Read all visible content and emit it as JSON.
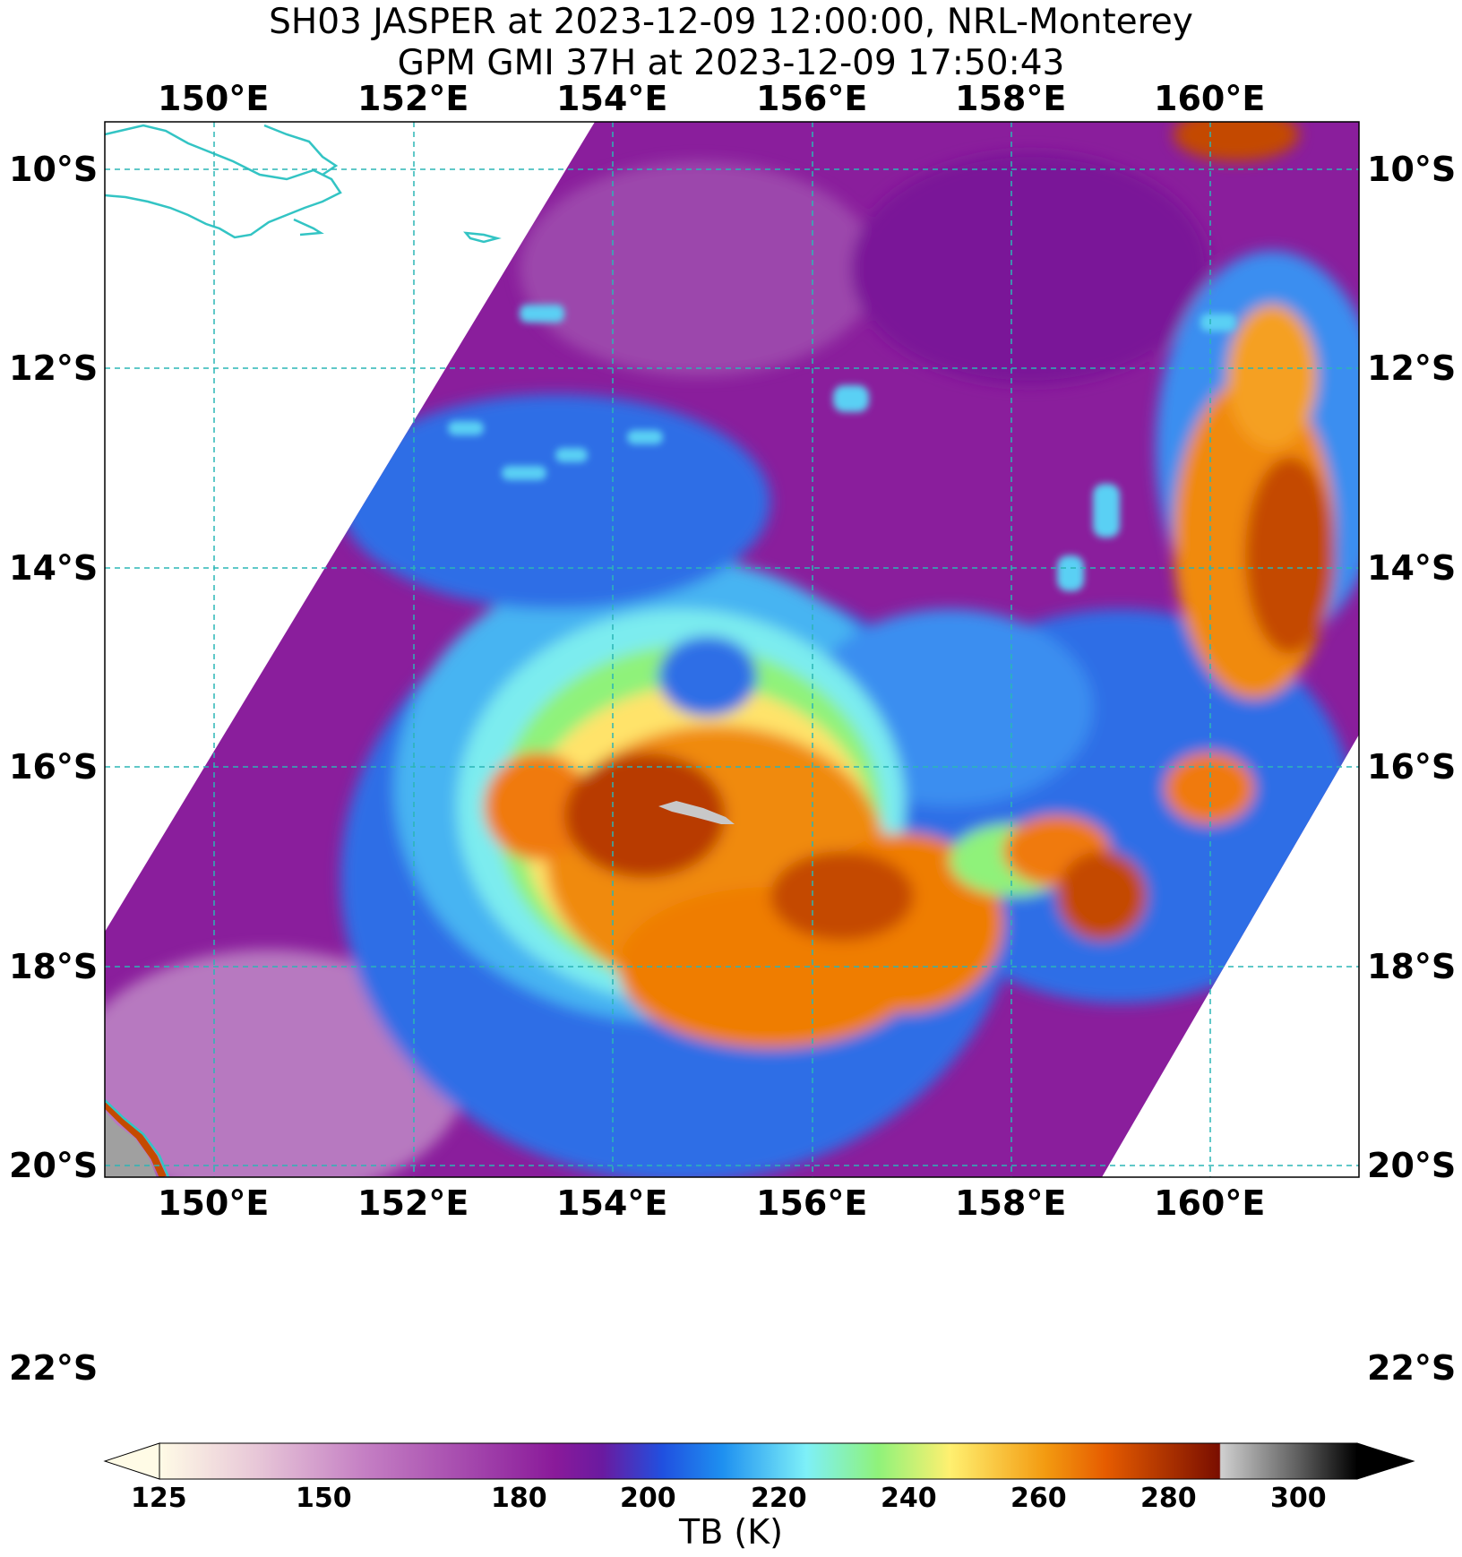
{
  "title_line1": "SH03 JASPER at 2023-12-09 12:00:00, NRL-Monterey",
  "title_line2": "GPM GMI 37H at 2023-12-09 17:50:43",
  "map": {
    "lon_range": [
      148.7,
      161.3
    ],
    "lat_range": [
      -22.1,
      -9.5
    ],
    "lon_ticks": [
      "150°E",
      "152°E",
      "154°E",
      "156°E",
      "158°E",
      "160°E"
    ],
    "lon_tick_values": [
      150,
      152,
      154,
      156,
      158,
      160
    ],
    "lat_ticks": [
      "10°S",
      "12°S",
      "14°S",
      "16°S",
      "18°S",
      "20°S",
      "22°S"
    ],
    "lat_tick_values": [
      -10,
      -12,
      -14,
      -16,
      -18,
      -20,
      -22
    ],
    "gridline_color": "#2bb5b5",
    "coastline_color": "#33c4c4",
    "storm_center_approx": [
      154.6,
      -16.7
    ]
  },
  "colorbar": {
    "label": "TB (K)",
    "range": [
      125,
      300
    ],
    "ticks": [
      "125",
      "150",
      "180",
      "200",
      "220",
      "240",
      "260",
      "280",
      "300"
    ],
    "tick_values": [
      125,
      150,
      180,
      200,
      220,
      240,
      260,
      280,
      300
    ],
    "extend": "both"
  },
  "colors": {
    "background_low": "#8c1d9a",
    "cool": "#1e7ae8",
    "mid": "#7cf0f0",
    "green": "#8ff27a",
    "yellow": "#ffe860",
    "warm": "#f07a08",
    "hot": "#7a1a00",
    "saturated": "#c0c0c0"
  }
}
